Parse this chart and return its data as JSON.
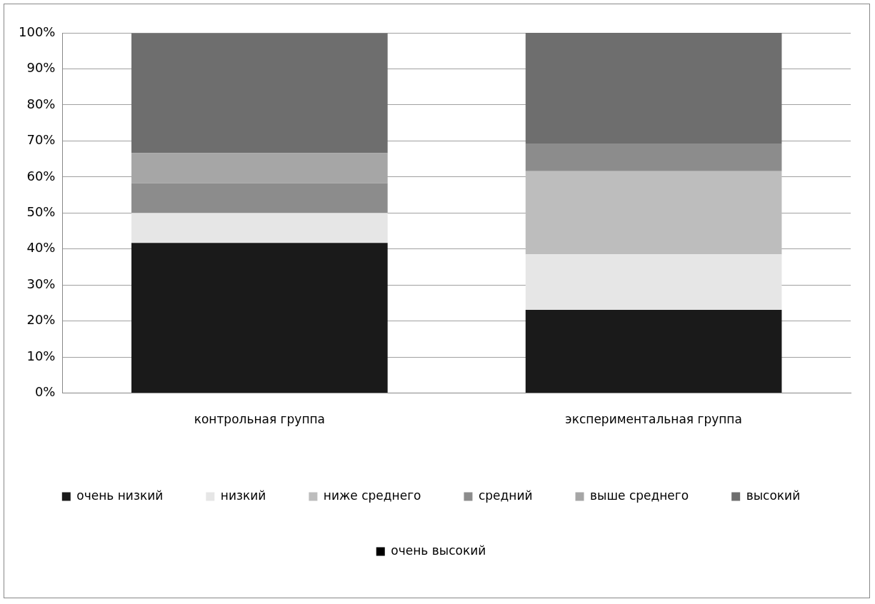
{
  "chart_data": {
    "type": "bar",
    "stacked": true,
    "categories": [
      "контрольная группа",
      "экспериментальная группа"
    ],
    "series": [
      {
        "name": "очень низкий",
        "color": "#1a1a1a",
        "values": [
          41.7,
          23.1
        ]
      },
      {
        "name": "низкий",
        "color": "#e6e6e6",
        "values": [
          8.3,
          15.4
        ]
      },
      {
        "name": "ниже среднего",
        "color": "#bdbdbd",
        "values": [
          0,
          23.1
        ]
      },
      {
        "name": "средний",
        "color": "#8c8c8c",
        "values": [
          8.3,
          7.7
        ]
      },
      {
        "name": "выше среднего",
        "color": "#a6a6a6",
        "values": [
          8.3,
          0
        ]
      },
      {
        "name": "высокий",
        "color": "#6e6e6e",
        "values": [
          33.3,
          30.7
        ]
      },
      {
        "name": "очень высокий",
        "color": "#000000",
        "values": [
          0,
          0
        ]
      }
    ],
    "ylim": [
      0,
      100
    ],
    "yticks": [
      {
        "value": 0,
        "label": "0%"
      },
      {
        "value": 10,
        "label": "10%"
      },
      {
        "value": 20,
        "label": "20%"
      },
      {
        "value": 30,
        "label": "30%"
      },
      {
        "value": 40,
        "label": "40%"
      },
      {
        "value": 50,
        "label": "50%"
      },
      {
        "value": 60,
        "label": "60%"
      },
      {
        "value": 70,
        "label": "70%"
      },
      {
        "value": 80,
        "label": "80%"
      },
      {
        "value": 90,
        "label": "90%"
      },
      {
        "value": 100,
        "label": "100%"
      }
    ],
    "grid": "y",
    "legend": "bottom"
  }
}
